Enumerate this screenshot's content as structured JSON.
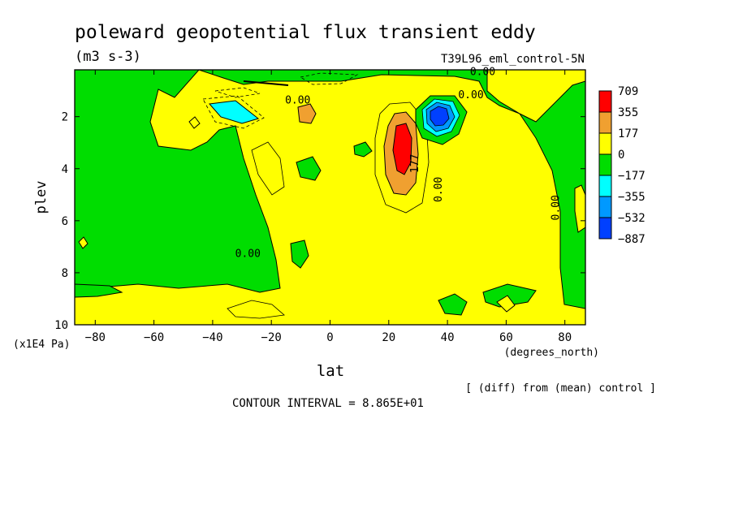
{
  "chart_data": {
    "type": "heatmap",
    "title": "poleward geopotential flux transient eddy",
    "units": "(m3 s-3)",
    "dataset": "T39L96_eml_control-5N",
    "xlabel": "lat",
    "xunits": "(degrees_north)",
    "ylabel": "plev",
    "yunits": "(x1E4 Pa)",
    "xlim": [
      -87,
      87
    ],
    "ylim": [
      10,
      0.2
    ],
    "x_ticks": [
      -80,
      -60,
      -40,
      -20,
      0,
      20,
      40,
      60,
      80
    ],
    "x_tick_labels": [
      "−80",
      "−60",
      "−40",
      "−20",
      "0",
      "20",
      "40",
      "60",
      "80"
    ],
    "y_ticks": [
      2,
      4,
      6,
      8,
      10
    ],
    "y_tick_labels": [
      "2",
      "4",
      "6",
      "8",
      "10"
    ],
    "colorbar": {
      "levels": [
        "709",
        "355",
        "177",
        "0",
        "−177",
        "−355",
        "−532",
        "−887"
      ],
      "colors": [
        "#ff0000",
        "#f0a030",
        "#ffff00",
        "#00dd00",
        "#00ffff",
        "#0099ff",
        "#0040ff"
      ]
    },
    "contour_labels": [
      {
        "text": "0.00",
        "lat": 52,
        "plev": 0.4
      },
      {
        "text": "0.00",
        "lat": -11,
        "plev": 1.5
      },
      {
        "text": "0.00",
        "lat": 48,
        "plev": 1.3
      },
      {
        "text": "177",
        "lat": 30,
        "plev": 3.8
      },
      {
        "text": "0.00",
        "lat": 38,
        "plev": 4.8
      },
      {
        "text": "0.00",
        "lat": 78,
        "plev": 5.5
      },
      {
        "text": "0.00",
        "lat": -28,
        "plev": 7.4
      }
    ],
    "features": [
      {
        "sign": "positive",
        "level": "709",
        "lat": 25,
        "plev": 3.0
      },
      {
        "sign": "negative",
        "level": "−887",
        "lat": 36,
        "plev": 1.8
      },
      {
        "sign": "negative",
        "level": "−355",
        "lat": -34,
        "plev": 1.8
      },
      {
        "sign": "positive",
        "level": "177",
        "lat": -9,
        "plev": 2.0
      }
    ],
    "contour_interval": "CONTOUR INTERVAL = 8.865E+01",
    "footnote": "[ (diff) from (mean) control ]"
  }
}
